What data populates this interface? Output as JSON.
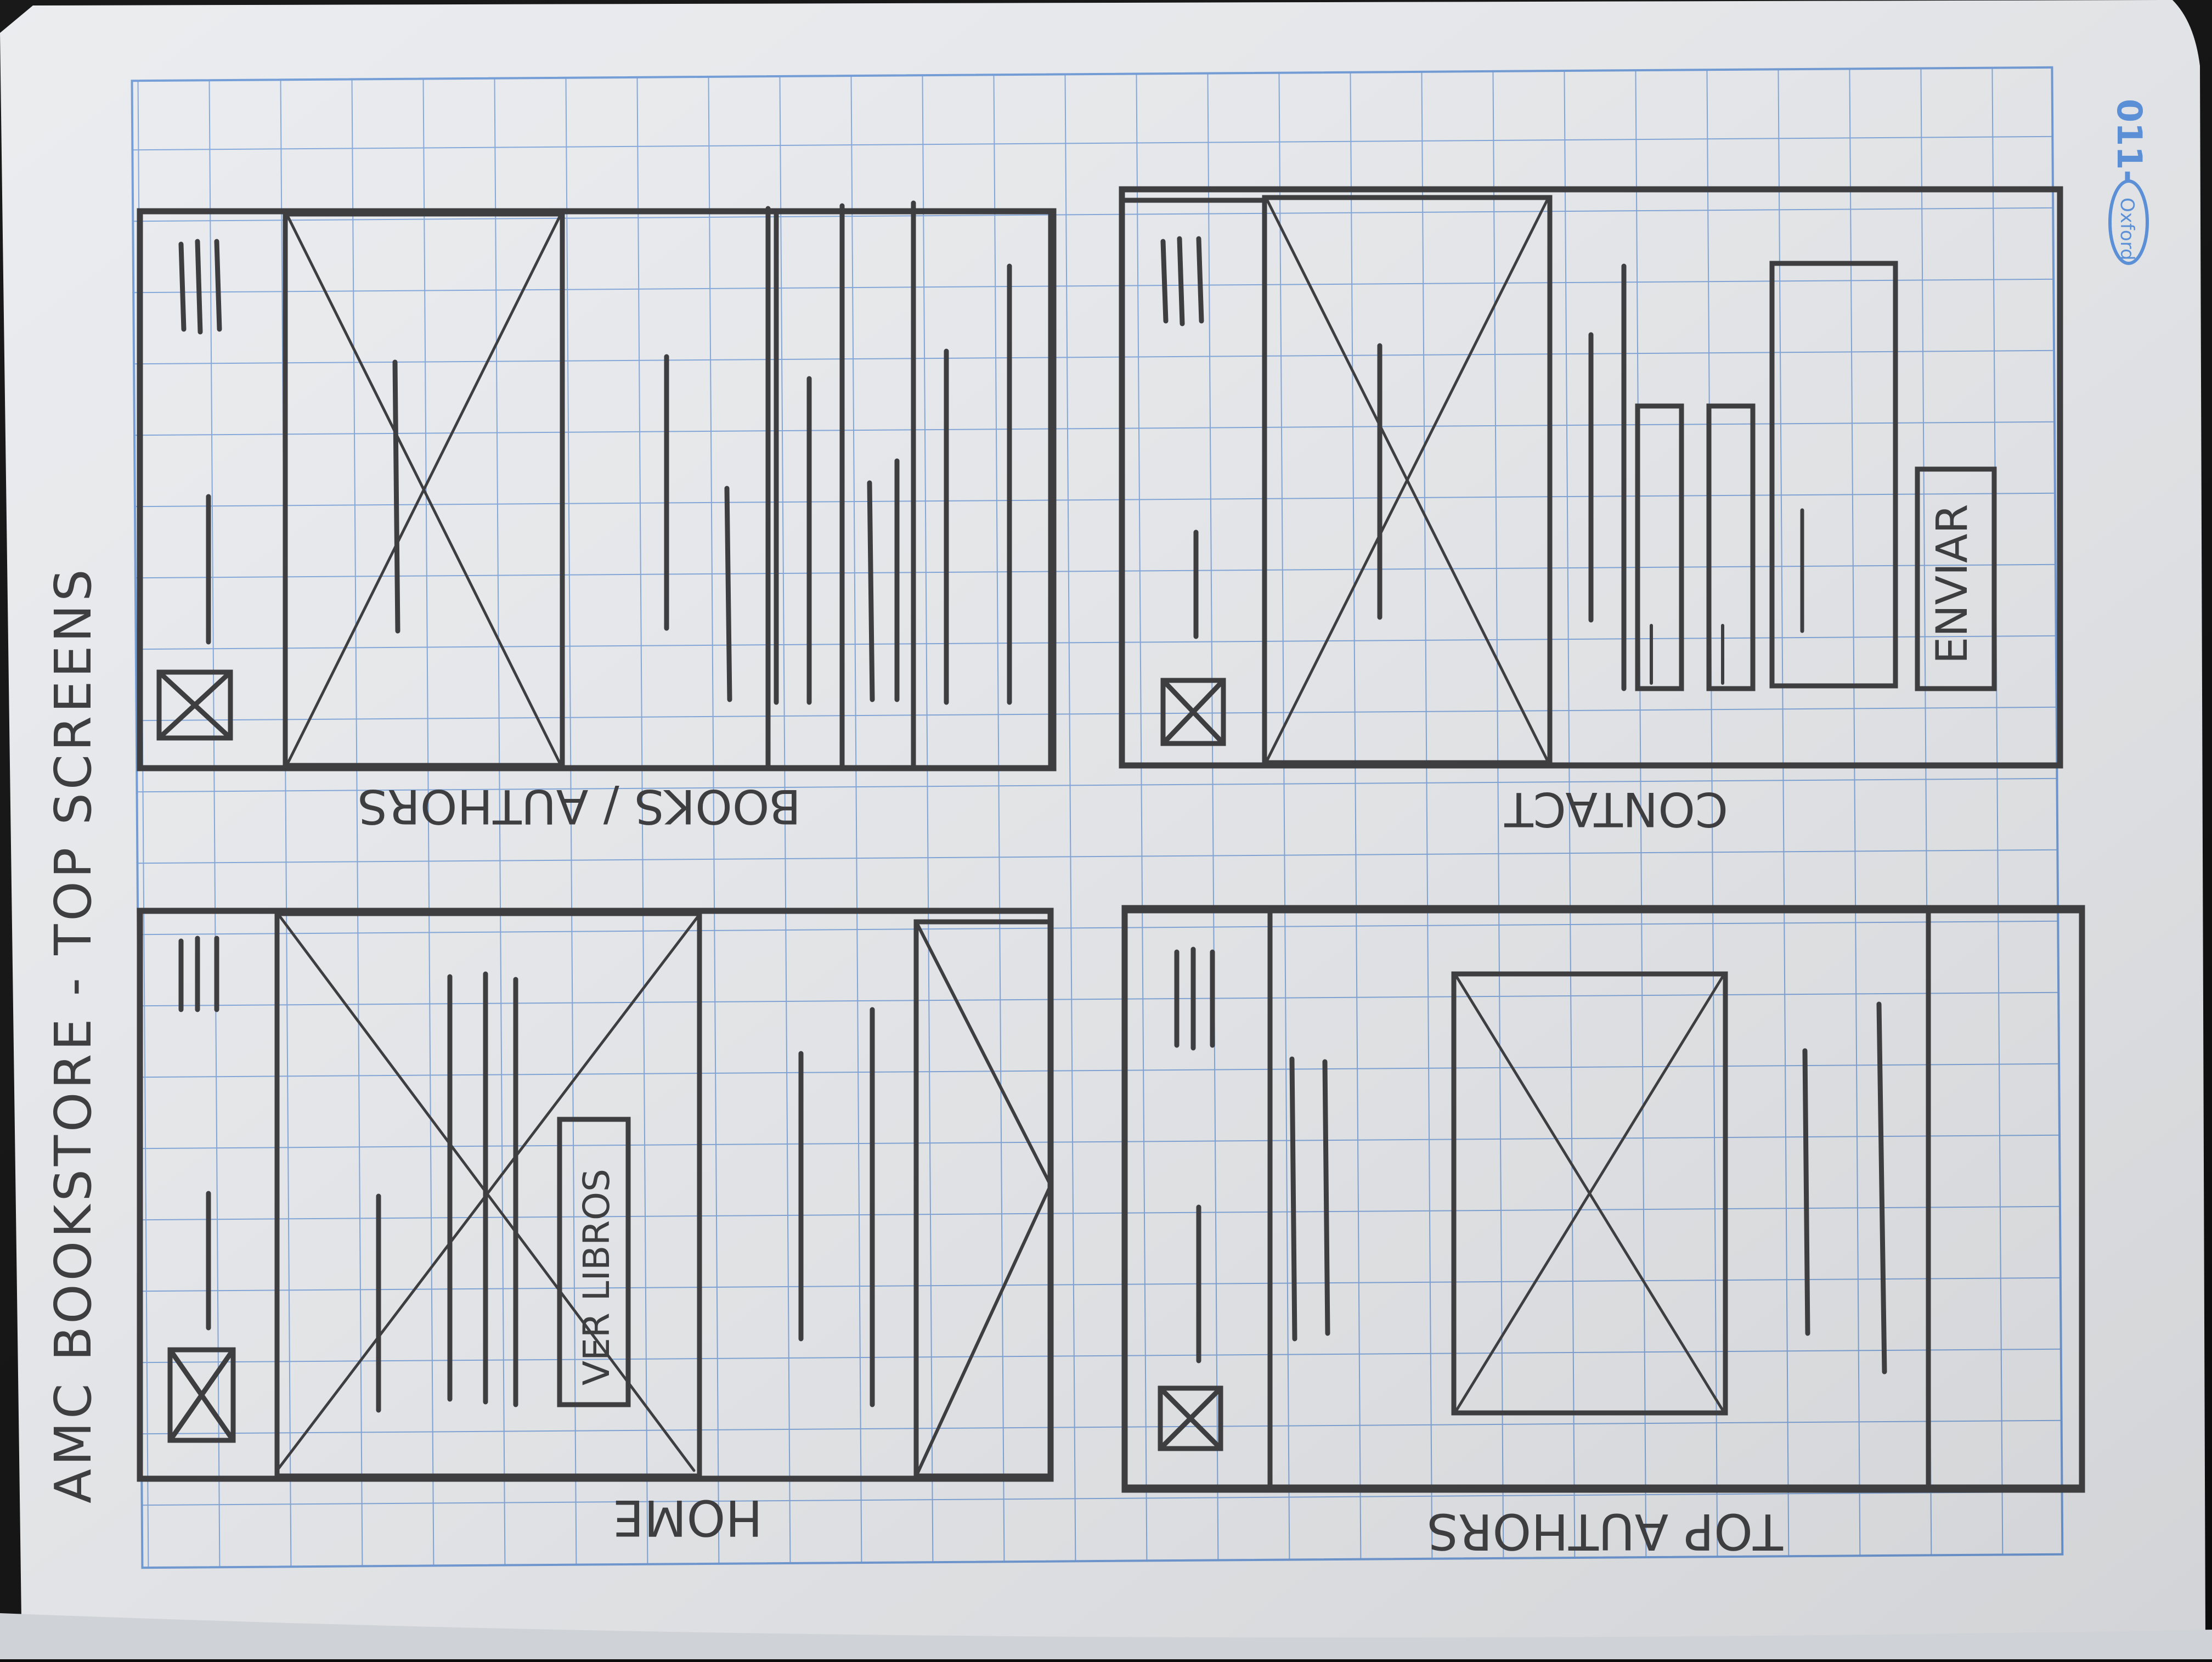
{
  "title": "AMC BOOKSTORE - TOP SCREENS",
  "brand": "Oxford",
  "screens": {
    "home": {
      "label": "HOME",
      "button": "VER LIBROS"
    },
    "books_authors": {
      "label": "BOOKS / AUTHORS"
    },
    "contact": {
      "label": "CONTACT",
      "button": "ENVIAR"
    },
    "top_authors": {
      "label": "TOP AUTHORS"
    }
  },
  "colors": {
    "paper": "#e9ebee",
    "grid": "#6f9ad6",
    "pencil": "#3e3e40",
    "brand_blue": "#5b8fd6"
  }
}
